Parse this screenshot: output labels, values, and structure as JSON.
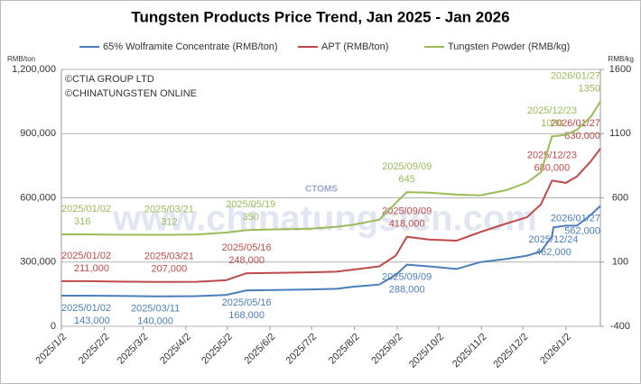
{
  "chart_data": {
    "type": "line",
    "title": "Tungsten Products Price Trend, Jan 2025 - Jan 2026",
    "y_unit": "RMB/ton",
    "y2_unit": "RMB/kg",
    "copyright": [
      "©CTIA GROUP LTD",
      "©CHINATUNGSTEN ONLINE"
    ],
    "watermark": "www.chinatungsten.com",
    "watermark_logo": "CTOMS",
    "x": [
      "2025/1/2",
      "2025/1/20",
      "2025/2/10",
      "2025/3/11",
      "2025/3/21",
      "2025/4/10",
      "2025/5/1",
      "2025/5/16",
      "2025/5/19",
      "2025/6/10",
      "2025/7/1",
      "2025/7/20",
      "2025/8/1",
      "2025/8/20",
      "2025/9/1",
      "2025/9/9",
      "2025/9/25",
      "2025/10/15",
      "2025/11/1",
      "2025/11/20",
      "2025/12/5",
      "2025/12/15",
      "2025/12/23",
      "2025/12/24",
      "2026/1/2",
      "2026/1/10",
      "2026/1/20",
      "2026/1/27"
    ],
    "xlim": [
      "2025/1/2",
      "2026/1/27"
    ],
    "xticks": [
      "2025/1/2",
      "2025/2/2",
      "2025/3/2",
      "2025/4/2",
      "2025/5/2",
      "2025/6/2",
      "2025/7/2",
      "2025/8/2",
      "2025/9/2",
      "2025/10/2",
      "2025/11/2",
      "2025/12/2",
      "2026/1/2"
    ],
    "ylim": [
      0,
      1200000
    ],
    "yticks": [
      0,
      {
        "value": 300000,
        "label": "300,000"
      },
      {
        "value": 600000,
        "label": "600,000"
      },
      {
        "value": 900000,
        "label": "900,000"
      },
      {
        "value": 1200000,
        "label": "1,200,000"
      }
    ],
    "y2lim": [
      -400,
      1600
    ],
    "y2ticks": [
      -400,
      100,
      600,
      1100,
      1600
    ],
    "grid": true,
    "series": [
      {
        "name": "65% Wolframite Concentrate (RMB/ton)",
        "color": "#4a7ebb",
        "values": [
          143000,
          143000,
          142000,
          140000,
          140000,
          141000,
          146000,
          168000,
          168000,
          170000,
          172000,
          175000,
          185000,
          195000,
          240000,
          288000,
          280000,
          268000,
          300000,
          315000,
          330000,
          350000,
          420000,
          462000,
          470000,
          470000,
          520000,
          562000
        ],
        "annotations": [
          {
            "date": "2025/01/02",
            "value": 143000,
            "label": "143,000"
          },
          {
            "date": "2025/03/11",
            "value": 140000,
            "label": "140,000"
          },
          {
            "date": "2025/05/16",
            "value": 168000,
            "label": "168,000"
          },
          {
            "date": "2025/09/09",
            "value": 288000,
            "label": "288,000"
          },
          {
            "date": "2025/12/24",
            "value": 462000,
            "label": "462,000"
          },
          {
            "date": "2026/01/27",
            "value": 562000,
            "label": "562,000"
          }
        ]
      },
      {
        "name": "APT (RMB/ton)",
        "color": "#be4b48",
        "values": [
          211000,
          211000,
          209000,
          207000,
          207000,
          208000,
          215000,
          248000,
          248000,
          250000,
          252000,
          255000,
          265000,
          280000,
          330000,
          418000,
          405000,
          400000,
          440000,
          480000,
          510000,
          570000,
          680000,
          680000,
          670000,
          700000,
          770000,
          830000
        ],
        "annotations": [
          {
            "date": "2025/01/02",
            "value": 211000,
            "label": "211,000"
          },
          {
            "date": "2025/03/21",
            "value": 207000,
            "label": "207,000"
          },
          {
            "date": "2025/05/16",
            "value": 248000,
            "label": "248,000"
          },
          {
            "date": "2025/09/09",
            "value": 418000,
            "label": "418,000"
          },
          {
            "date": "2025/12/23",
            "value": 680000,
            "label": "680,000"
          },
          {
            "date": "2026/01/27",
            "value": 830000,
            "label": "830,000"
          }
        ]
      },
      {
        "name": "Tungsten Powder (RMB/kg)",
        "color": "#9bbb59",
        "axis": "y2",
        "values": [
          316,
          316,
          313,
          312,
          312,
          315,
          330,
          348,
          350,
          355,
          360,
          375,
          390,
          430,
          560,
          645,
          640,
          625,
          620,
          660,
          720,
          800,
          1080,
          1080,
          1090,
          1130,
          1230,
          1350
        ],
        "annotations": [
          {
            "date": "2025/01/02",
            "value": 316
          },
          {
            "date": "2025/03/21",
            "value": 312
          },
          {
            "date": "2025/05/19",
            "value": 350
          },
          {
            "date": "2025/09/09",
            "value": 645
          },
          {
            "date": "2025/12/23",
            "value": 1080
          },
          {
            "date": "2026/01/27",
            "value": 1350
          }
        ]
      }
    ]
  }
}
